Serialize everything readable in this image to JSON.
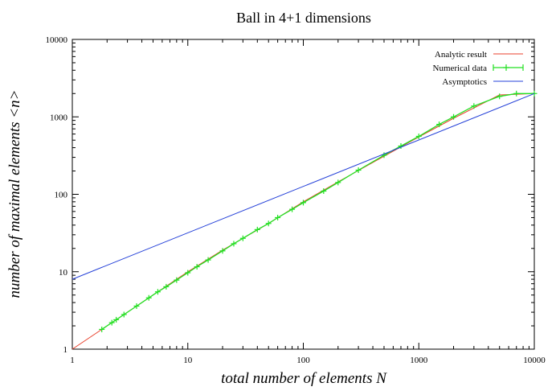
{
  "chart_data": {
    "type": "line",
    "title": "Ball in 4+1 dimensions",
    "xlabel": "total number of elements N",
    "ylabel": "number of maximal elements <n>",
    "xscale": "log",
    "yscale": "log",
    "xlim": [
      1,
      10000
    ],
    "ylim": [
      1,
      10000
    ],
    "xticks": [
      "1",
      "10",
      "100",
      "1000",
      "10000"
    ],
    "yticks": [
      "1",
      "10",
      "100",
      "1000",
      "10000"
    ],
    "grid": false,
    "legend_position": "top-right",
    "series": [
      {
        "name": "Analytic result",
        "style": "line",
        "color": "#e8412c",
        "x": [
          1,
          2,
          5,
          10,
          20,
          50,
          100,
          200,
          500,
          1000,
          2000,
          5000,
          10000
        ],
        "y": [
          1,
          2,
          5,
          10,
          19,
          42,
          80,
          145,
          310,
          550,
          960,
          1920,
          2000
        ]
      },
      {
        "name": "Numerical data",
        "style": "linespoints",
        "color": "#22e022",
        "x": [
          1.8,
          2.2,
          2.4,
          2.8,
          3.6,
          4.6,
          5.5,
          6.5,
          8,
          10,
          12,
          15,
          20,
          25,
          30,
          40,
          50,
          60,
          80,
          100,
          150,
          200,
          300,
          500,
          700,
          1000,
          1500,
          2000,
          3000,
          5000,
          7000,
          10000
        ],
        "y": [
          1.8,
          2.2,
          2.4,
          2.8,
          3.6,
          4.6,
          5.5,
          6.4,
          7.8,
          9.7,
          11.6,
          14.2,
          18.6,
          23,
          27,
          35,
          42,
          50,
          64,
          78,
          110,
          142,
          205,
          320,
          420,
          560,
          800,
          1000,
          1380,
          1840,
          2000,
          2000
        ]
      },
      {
        "name": "Asymptotics",
        "style": "line",
        "color": "#2440d8",
        "x": [
          1,
          10000
        ],
        "y": [
          8,
          2000
        ]
      }
    ]
  }
}
